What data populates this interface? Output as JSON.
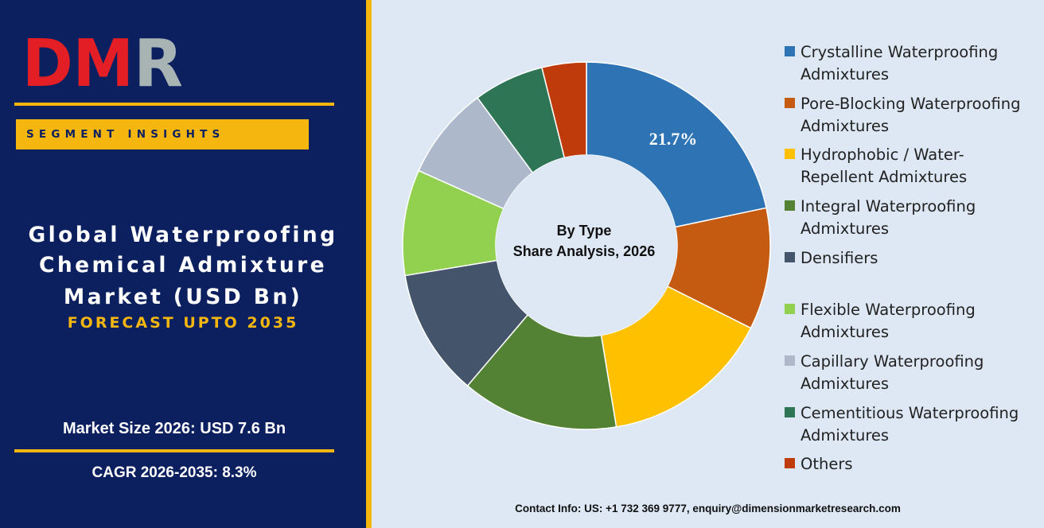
{
  "brand": {
    "logo_text_red": "DM",
    "logo_text_gray": "R",
    "colors": {
      "navy": "#0c2060",
      "gold": "#f5b70f",
      "logo_red": "#e31e24",
      "logo_gray": "#a8b4b4"
    }
  },
  "segment_label": "SEGMENT INSIGHTS",
  "title_lines": [
    "Global Waterproofing",
    "Chemical Admixture",
    "Market (USD Bn)"
  ],
  "forecast": "FORECAST UPTO 2035",
  "market_size": "Market Size 2026: USD 7.6 Bn",
  "cagr": "CAGR 2026-2035: 8.3%",
  "contact": "Contact Info: US: +1 732 369 9777, enquiry@dimensionmarketresearch.com",
  "chart_data": {
    "type": "pie",
    "subtype": "donut",
    "center_label": [
      "By Type",
      "Share Analysis, 2026"
    ],
    "legend_position": "right",
    "series": [
      {
        "name": "Crystalline Waterproofing Admixtures",
        "value": 21.7,
        "label": "21.7%",
        "color": "#2e74b5"
      },
      {
        "name": "Pore-Blocking Waterproofing Admixtures",
        "value": 10.7,
        "color": "#c55a11"
      },
      {
        "name": "Hydrophobic / Water-Repellent Admixtures",
        "value": 15.0,
        "color": "#ffc000"
      },
      {
        "name": "Integral Waterproofing Admixtures",
        "value": 13.8,
        "color": "#548235"
      },
      {
        "name": "Densifiers",
        "value": 11.2,
        "color": "#44546a"
      },
      {
        "name": "Flexible Waterproofing Admixtures",
        "value": 9.3,
        "color": "#92d050"
      },
      {
        "name": "Capillary Waterproofing Admixtures",
        "value": 8.2,
        "color": "#adb9ca"
      },
      {
        "name": "Cementitious Waterproofing Admixtures",
        "value": 6.2,
        "color": "#2e7556"
      },
      {
        "name": "Others",
        "value": 3.9,
        "color": "#c03b0c"
      }
    ]
  },
  "legend_lines": [
    [
      "Crystalline Waterproofing",
      "Admixtures"
    ],
    [
      "Pore-Blocking Waterproofing",
      "Admixtures"
    ],
    [
      "Hydrophobic / Water-",
      "Repellent Admixtures"
    ],
    [
      "Integral Waterproofing",
      "Admixtures"
    ],
    [
      "Densifiers"
    ],
    [
      "Flexible Waterproofing",
      "Admixtures"
    ],
    [
      "Capillary Waterproofing",
      "Admixtures"
    ],
    [
      "Cementitious Waterproofing",
      "Admixtures"
    ],
    [
      "Others"
    ]
  ]
}
